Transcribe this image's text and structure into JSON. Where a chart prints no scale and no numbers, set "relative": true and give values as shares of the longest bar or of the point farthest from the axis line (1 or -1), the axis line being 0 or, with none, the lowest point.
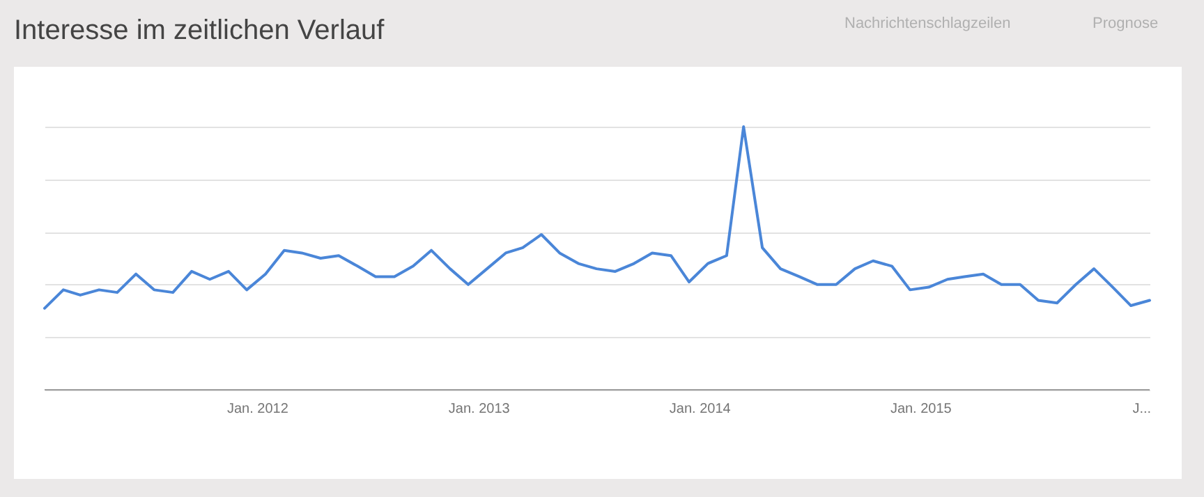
{
  "chart_data": {
    "type": "line",
    "title": "Interesse im zeitlichen Verlauf",
    "relative": true,
    "x": [
      "2011-01-15",
      "2011-02-15",
      "2011-03-15",
      "2011-04-15",
      "2011-05-15",
      "2011-06-15",
      "2011-07-15",
      "2011-08-15",
      "2011-09-15",
      "2011-10-15",
      "2011-11-15",
      "2011-12-15",
      "2012-01-15",
      "2012-02-15",
      "2012-03-15",
      "2012-04-15",
      "2012-05-15",
      "2012-06-15",
      "2012-07-15",
      "2012-08-15",
      "2012-09-15",
      "2012-10-15",
      "2012-11-15",
      "2012-12-15",
      "2013-01-15",
      "2013-02-15",
      "2013-03-15",
      "2013-04-15",
      "2013-05-15",
      "2013-06-15",
      "2013-07-15",
      "2013-08-15",
      "2013-09-15",
      "2013-10-15",
      "2013-11-15",
      "2013-12-15",
      "2014-01-15",
      "2014-02-15",
      "2014-03-15",
      "2014-04-15",
      "2014-05-15",
      "2014-06-15",
      "2014-07-15",
      "2014-08-15",
      "2014-09-15",
      "2014-10-15",
      "2014-11-15",
      "2014-12-15",
      "2015-01-15",
      "2015-02-15",
      "2015-03-15",
      "2015-04-15",
      "2015-05-15",
      "2015-06-15",
      "2015-07-15",
      "2015-08-15",
      "2015-09-15",
      "2015-10-15",
      "2015-11-15",
      "2015-12-15",
      "2016-01-15"
    ],
    "series": [
      {
        "color": "#4a86d8",
        "values": [
          0.31,
          0.38,
          0.36,
          0.38,
          0.37,
          0.44,
          0.38,
          0.37,
          0.45,
          0.42,
          0.45,
          0.38,
          0.44,
          0.53,
          0.52,
          0.5,
          0.51,
          0.47,
          0.43,
          0.43,
          0.47,
          0.53,
          0.46,
          0.4,
          0.46,
          0.52,
          0.54,
          0.59,
          0.52,
          0.48,
          0.46,
          0.45,
          0.48,
          0.52,
          0.51,
          0.41,
          0.48,
          0.51,
          1.0,
          0.54,
          0.46,
          0.43,
          0.4,
          0.4,
          0.46,
          0.49,
          0.47,
          0.38,
          0.39,
          0.42,
          0.43,
          0.44,
          0.4,
          0.4,
          0.34,
          0.33,
          0.4,
          0.46,
          0.39,
          0.32,
          0.34
        ]
      }
    ],
    "xlim": [
      "2011-01-15",
      "2016-01-15"
    ],
    "xticks": [
      {
        "value": "2012-01-01",
        "label": "Jan. 2012"
      },
      {
        "value": "2013-01-01",
        "label": "Jan. 2013"
      },
      {
        "value": "2014-01-01",
        "label": "Jan. 2014"
      },
      {
        "value": "2015-01-01",
        "label": "Jan. 2015"
      },
      {
        "value": "2016-01-01",
        "label": "J..."
      }
    ],
    "grid": "y",
    "line_style": "solid",
    "annotations": [
      "Nachrichtenschlagzeilen",
      "Prognose"
    ]
  }
}
